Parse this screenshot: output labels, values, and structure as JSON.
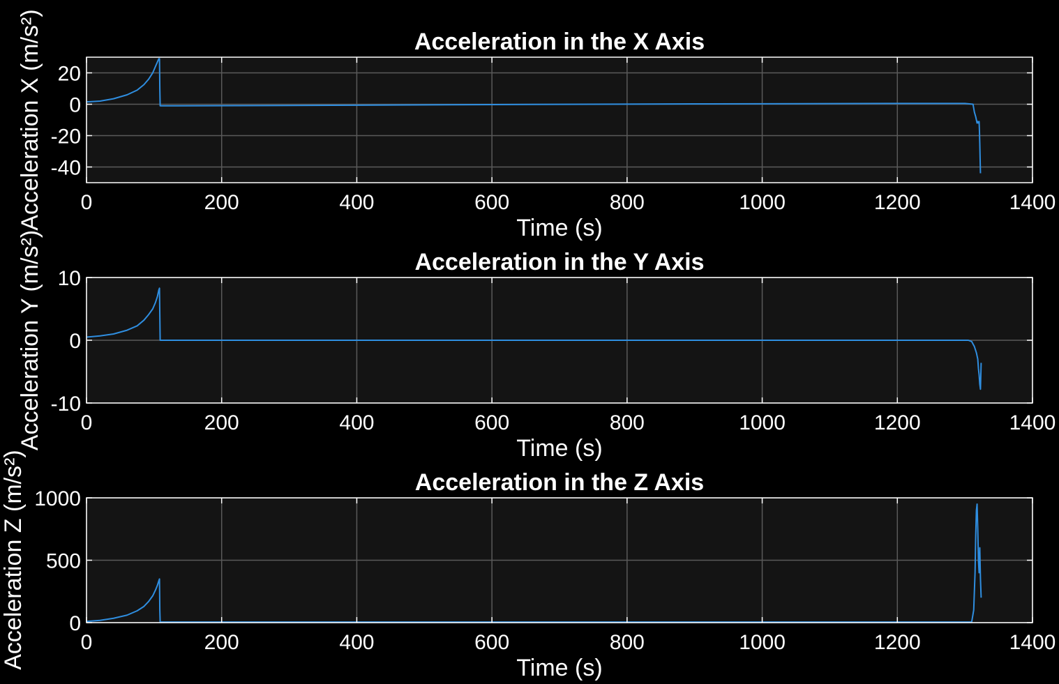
{
  "chart_data": [
    {
      "type": "line",
      "title": "Acceleration in the X Axis",
      "xlabel": "Time (s)",
      "ylabel": "Acceleration X (m/s²)",
      "xlim": [
        0,
        1400
      ],
      "ylim": [
        -50,
        30
      ],
      "xticks": [
        0,
        200,
        400,
        600,
        800,
        1000,
        1200,
        1400
      ],
      "yticks": [
        20,
        0,
        -20,
        -40
      ],
      "grid": true,
      "series": [
        {
          "x": [
            0,
            20,
            40,
            60,
            75,
            85,
            92,
            98,
            102,
            105,
            107,
            108,
            108.5,
            109,
            300,
            600,
            900,
            1200,
            1300,
            1312,
            1314,
            1316,
            1318,
            1319,
            1320,
            1321,
            1321.5,
            1322,
            1322.5,
            1323
          ],
          "y": [
            1.5,
            2,
            3.5,
            6,
            9,
            12.5,
            16,
            20,
            24,
            27,
            29,
            29,
            10,
            -1,
            -0.8,
            -0.2,
            0.2,
            0.5,
            0.5,
            0,
            -5,
            -8,
            -12,
            -11,
            -12,
            -11,
            -17,
            -25,
            -35,
            -44
          ]
        }
      ]
    },
    {
      "type": "line",
      "title": "Acceleration in the Y Axis",
      "xlabel": "Time (s)",
      "ylabel": "Acceleration Y (m/s²)",
      "xlim": [
        0,
        1400
      ],
      "ylim": [
        -10,
        10
      ],
      "xticks": [
        0,
        200,
        400,
        600,
        800,
        1000,
        1200,
        1400
      ],
      "yticks": [
        10,
        0,
        -10
      ],
      "grid": true,
      "series": [
        {
          "x": [
            0,
            20,
            40,
            60,
            75,
            85,
            92,
            98,
            102,
            105,
            107,
            108,
            108.5,
            109,
            300,
            600,
            900,
            1200,
            1305,
            1310,
            1314,
            1317,
            1319,
            1320,
            1321,
            1322,
            1323,
            1324
          ],
          "y": [
            0.5,
            0.7,
            1.0,
            1.6,
            2.3,
            3.2,
            4.1,
            5.0,
            6.0,
            7.0,
            8.0,
            8.3,
            4,
            0,
            0,
            0,
            0,
            0,
            0,
            -0.2,
            -1.0,
            -2.0,
            -3.0,
            -4.5,
            -5.5,
            -7.0,
            -7.8,
            -3.6
          ]
        }
      ]
    },
    {
      "type": "line",
      "title": "Acceleration in the Z Axis",
      "xlabel": "Time (s)",
      "ylabel": "Acceleration Z (m/s²)",
      "xlim": [
        0,
        1400
      ],
      "ylim": [
        0,
        1000
      ],
      "xticks": [
        0,
        200,
        400,
        600,
        800,
        1000,
        1200,
        1400
      ],
      "yticks": [
        1000,
        500,
        0
      ],
      "grid": true,
      "series": [
        {
          "x": [
            0,
            20,
            40,
            60,
            75,
            85,
            92,
            98,
            102,
            105,
            107,
            108,
            108.5,
            109,
            300,
            600,
            900,
            1200,
            1310,
            1313,
            1315,
            1316,
            1317,
            1318,
            1319,
            1320,
            1321,
            1322,
            1323,
            1324
          ],
          "y": [
            10,
            18,
            35,
            60,
            95,
            130,
            170,
            215,
            260,
            300,
            335,
            350,
            100,
            5,
            5,
            5,
            5,
            5,
            5,
            100,
            400,
            700,
            900,
            950,
            750,
            500,
            400,
            600,
            350,
            200
          ]
        }
      ]
    }
  ],
  "colors": {
    "figure_background": "#000000",
    "axes_background": "#141414",
    "grid": "#5a5a5a",
    "axis_box": "#ffffff",
    "line": "#2f8ee0",
    "text": "#ffffff"
  }
}
